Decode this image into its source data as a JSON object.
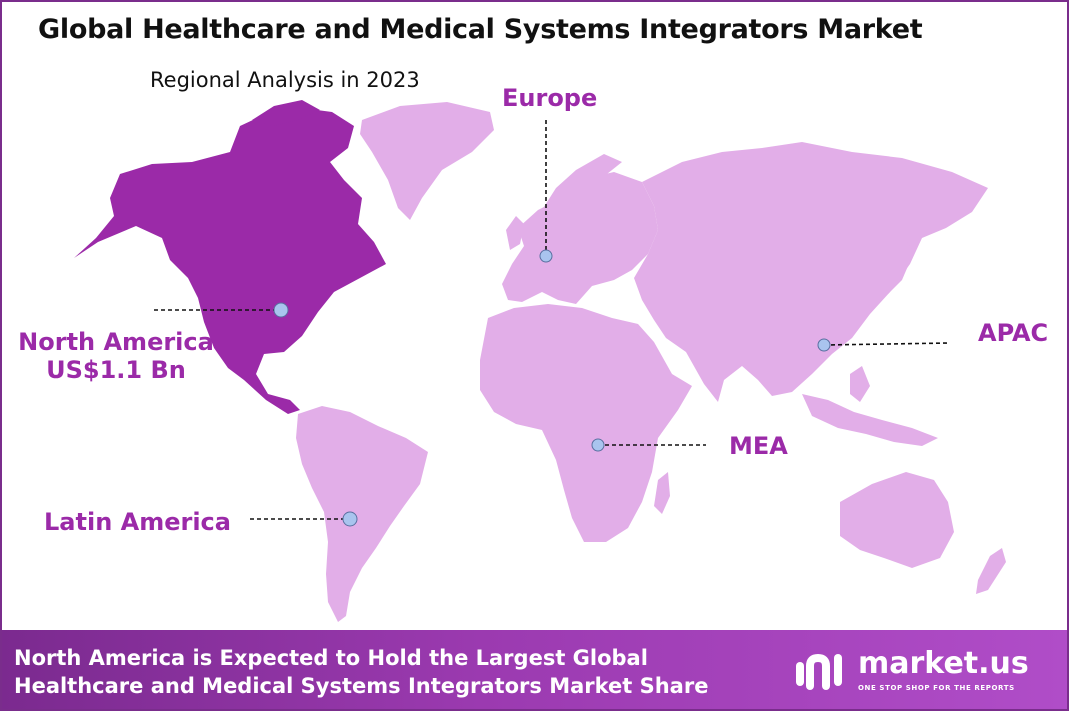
{
  "header": {
    "title": "Global Healthcare and Medical Systems Integrators Market",
    "subtitle": "Regional Analysis in 2023"
  },
  "regions": [
    {
      "id": "north_america",
      "name": "North America",
      "value": "US$1.1 Bn",
      "highlighted": true
    },
    {
      "id": "europe",
      "name": "Europe",
      "highlighted": false
    },
    {
      "id": "apac",
      "name": "APAC",
      "highlighted": false
    },
    {
      "id": "mea",
      "name": "MEA",
      "highlighted": false
    },
    {
      "id": "latin_america",
      "name": "Latin America",
      "highlighted": false
    }
  ],
  "colors": {
    "highlight": "#9b2aa8",
    "land": "#e2aee8",
    "label": "#9b2aa8",
    "marker": "#a9c4ee",
    "border": "#7a2d8c"
  },
  "footer": {
    "line1": "North America is Expected to Hold the Largest Global",
    "line2": "Healthcare and Medical Systems Integrators Market Share",
    "brand_name": "market.us",
    "brand_tagline": "ONE STOP SHOP FOR THE REPORTS",
    "brand_icon": "market-us-logo-icon"
  }
}
